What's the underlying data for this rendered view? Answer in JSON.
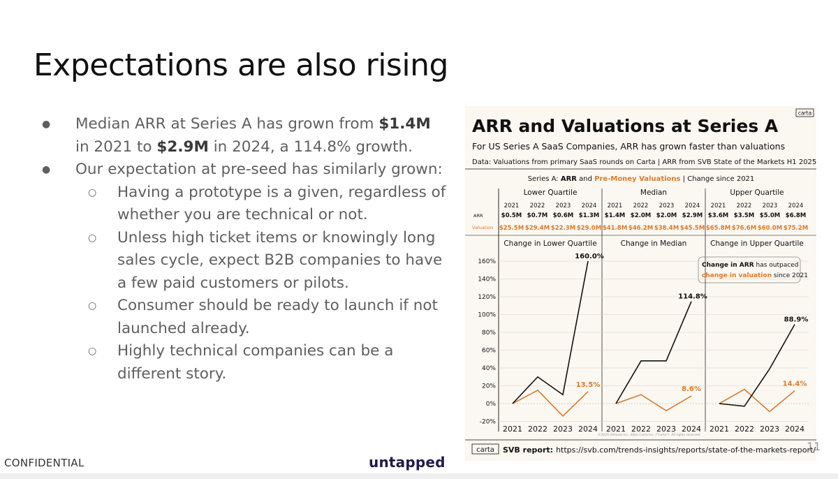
{
  "slide": {
    "title": "Expectations are also rising",
    "bullets": [
      {
        "pre": "Median ARR at Series A has grown from ",
        "b1": "$1.4M",
        "mid": " in 2021 to ",
        "b2": "$2.9M",
        "post": " in 2024, a 114.8% growth."
      },
      {
        "text": "Our expectation at pre-seed has similarly grown:"
      }
    ],
    "sub_bullets": [
      "Having a prototype is a given, regardless of whether you are technical or not.",
      "Unless high ticket items or knowingly long sales cycle, expect B2B companies to have a few paid customers or pilots.",
      "Consumer should be ready to launch if not launched already.",
      "Highly technical companies can be a different story."
    ],
    "footer_left": "CONFIDENTIAL",
    "brand": "untapped",
    "page_number": "11"
  },
  "chart": {
    "logo": "carta",
    "title": "ARR and Valuations at Series A",
    "subtitle": "For US Series A SaaS Companies, ARR has grown faster than valuations",
    "data_note": "Data: Valuations from primary SaaS rounds on Carta | ARR from SVB State of the Markets H1 2025",
    "header_pre": "Series A: ",
    "header_arr": "ARR",
    "header_and": " and ",
    "header_val": "Pre-Money Valuations",
    "header_post": " | Change since 2021",
    "row_arr_label": "ARR",
    "row_val_label": "Valuation",
    "callout_1a": "Change in ARR",
    "callout_1b": " has outpaced",
    "callout_2a": "change in valuation",
    "callout_2b": " since 2021",
    "copyright": "©2025 eShares Inc. d/b/a Carta Inc. (\"Carta\"). All rights reserved",
    "footer_logo": "carta",
    "footer_label": "SVB report:",
    "footer_url": "https://svb.com/trends-insights/reports/state-of-the-markets-report/",
    "colors": {
      "arr": "#111111",
      "valuation": "#d97b2c",
      "background": "#fbf7f1",
      "grid": "#d9d2c8"
    }
  },
  "chart_data": {
    "type": "line",
    "title": "ARR and Valuations at Series A",
    "x": [
      "2021",
      "2022",
      "2023",
      "2024"
    ],
    "yticks": [
      "160%",
      "140%",
      "120%",
      "100%",
      "80%",
      "60%",
      "40%",
      "20%",
      "0%",
      "-20%"
    ],
    "ylim": [
      -20,
      165
    ],
    "panels": [
      {
        "name": "Lower Quartile",
        "change_title": "Change in Lower Quartile",
        "arr_values": [
          "$0.5M",
          "$0.7M",
          "$0.6M",
          "$1.3M"
        ],
        "valuation_values": [
          "$25.5M",
          "$29.4M",
          "$22.3M",
          "$29.0M"
        ],
        "arr_change": [
          0,
          30,
          10,
          160
        ],
        "valuation_change": [
          0,
          15,
          -14,
          13.5
        ],
        "arr_end_label": "160.0%",
        "valuation_end_label": "13.5%"
      },
      {
        "name": "Median",
        "change_title": "Change in Median",
        "arr_values": [
          "$1.4M",
          "$2.0M",
          "$2.0M",
          "$2.9M"
        ],
        "valuation_values": [
          "$41.8M",
          "$46.2M",
          "$38.4M",
          "$45.5M"
        ],
        "arr_change": [
          0,
          48,
          48,
          114.8
        ],
        "valuation_change": [
          0,
          10,
          -8,
          8.6
        ],
        "arr_end_label": "114.8%",
        "valuation_end_label": "8.6%"
      },
      {
        "name": "Upper Quartile",
        "change_title": "Change in Upper Quartile",
        "arr_values": [
          "$3.6M",
          "$3.5M",
          "$5.0M",
          "$6.8M"
        ],
        "valuation_values": [
          "$65.8M",
          "$76.6M",
          "$60.0M",
          "$75.2M"
        ],
        "arr_change": [
          0,
          -3,
          39,
          88.9
        ],
        "valuation_change": [
          0,
          16,
          -9,
          14.4
        ],
        "arr_end_label": "88.9%",
        "valuation_end_label": "14.4%"
      }
    ]
  }
}
